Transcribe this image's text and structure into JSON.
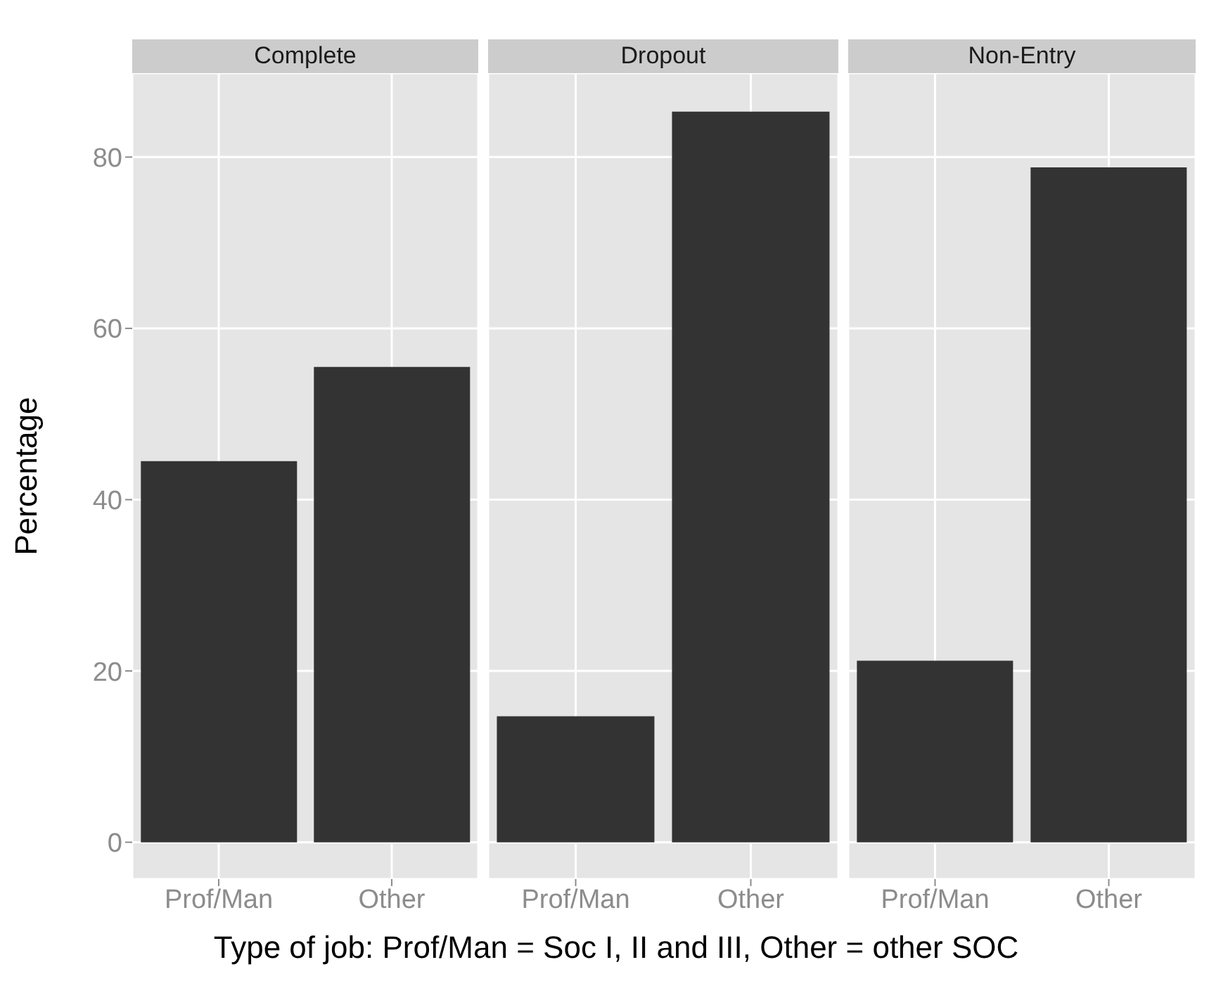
{
  "chart_data": [
    {
      "type": "bar",
      "title": "Complete",
      "categories": [
        "Prof/Man",
        "Other"
      ],
      "values": [
        44.5,
        55.5
      ],
      "color": "#333333",
      "ylim": [
        -4.3,
        89.8
      ],
      "yticks": [
        0,
        20,
        40,
        60,
        80
      ],
      "ylabel": "Percentage",
      "grid": true
    },
    {
      "type": "bar",
      "title": "Dropout",
      "categories": [
        "Prof/Man",
        "Other"
      ],
      "values": [
        14.7,
        85.3
      ],
      "color": "#333333",
      "ylim": [
        -4.3,
        89.8
      ],
      "yticks": [
        0,
        20,
        40,
        60,
        80
      ],
      "grid": true,
      "tick_labels": "x",
      "xlabel": "Type of job: Prof/Man = Soc I, II and III, Other = other SOC"
    },
    {
      "type": "bar",
      "title": "Non-Entry",
      "categories": [
        "Prof/Man",
        "Other"
      ],
      "values": [
        21.2,
        78.8
      ],
      "color": "#333333",
      "ylim": [
        -4.3,
        89.8
      ],
      "yticks": [
        0,
        20,
        40,
        60,
        80
      ],
      "grid": true,
      "tick_labels": "x"
    }
  ]
}
